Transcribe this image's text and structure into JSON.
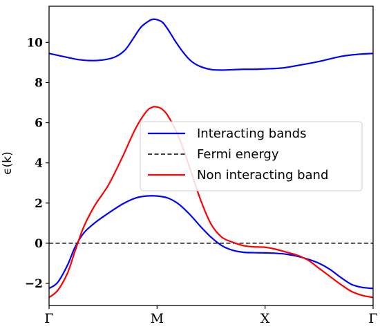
{
  "chart_data": {
    "type": "line",
    "title": "",
    "xlabel": "",
    "ylabel": "ϵ(k)",
    "xlim": [
      0,
      3
    ],
    "ylim": [
      -3.1,
      11.8
    ],
    "x_ticks": [
      {
        "value": 0,
        "label": "Γ"
      },
      {
        "value": 1,
        "label": "M"
      },
      {
        "value": 2,
        "label": "X"
      },
      {
        "value": 3,
        "label": "Γ"
      }
    ],
    "y_ticks": [
      {
        "value": -2,
        "label": "−2"
      },
      {
        "value": 0,
        "label": "0"
      },
      {
        "value": 2,
        "label": "2"
      },
      {
        "value": 4,
        "label": "4"
      },
      {
        "value": 6,
        "label": "6"
      },
      {
        "value": 8,
        "label": "8"
      },
      {
        "value": 10,
        "label": "10"
      }
    ],
    "grid": false,
    "legend_position": "center-right",
    "series": [
      {
        "name": "Interacting bands",
        "color": "#0000ff",
        "style": "solid",
        "x": [
          0,
          0.13,
          0.29,
          0.45,
          0.6,
          0.7,
          0.78,
          0.85,
          0.92,
          0.96,
          1.0,
          1.05,
          1.1,
          1.17,
          1.25,
          1.32,
          1.4,
          1.5,
          1.6,
          1.7,
          1.8,
          1.9,
          2.0,
          2.15,
          2.3,
          2.5,
          2.7,
          2.85,
          3.0
        ],
        "y": [
          9.45,
          9.3,
          9.13,
          9.1,
          9.25,
          9.6,
          10.2,
          10.75,
          11.05,
          11.15,
          11.13,
          11.0,
          10.65,
          10.05,
          9.45,
          9.05,
          8.8,
          8.65,
          8.62,
          8.64,
          8.66,
          8.66,
          8.68,
          8.72,
          8.85,
          9.05,
          9.3,
          9.4,
          9.45
        ]
      },
      {
        "name": "Interacting bands",
        "color": "#0000ff",
        "style": "solid",
        "x": [
          0,
          0.08,
          0.17,
          0.24,
          0.32,
          0.42,
          0.55,
          0.68,
          0.8,
          0.9,
          1.0,
          1.1,
          1.2,
          1.3,
          1.4,
          1.5,
          1.6,
          1.7,
          1.8,
          1.9,
          2.0,
          2.1,
          2.2,
          2.3,
          2.4,
          2.5,
          2.6,
          2.7,
          2.8,
          2.9,
          3.0
        ],
        "y": [
          -2.25,
          -1.95,
          -1.1,
          -0.2,
          0.5,
          1.0,
          1.5,
          1.95,
          2.25,
          2.35,
          2.35,
          2.25,
          1.95,
          1.45,
          0.85,
          0.3,
          -0.12,
          -0.35,
          -0.45,
          -0.47,
          -0.48,
          -0.5,
          -0.55,
          -0.65,
          -0.8,
          -1.0,
          -1.3,
          -1.7,
          -2.05,
          -2.2,
          -2.25
        ]
      },
      {
        "name": "Fermi energy",
        "color": "#000000",
        "style": "dashed",
        "x": [
          0,
          3
        ],
        "y": [
          0,
          0
        ]
      },
      {
        "name": "Non interacting band",
        "color": "#ff0000",
        "style": "solid",
        "x": [
          0,
          0.08,
          0.17,
          0.24,
          0.32,
          0.42,
          0.55,
          0.68,
          0.8,
          0.9,
          0.96,
          1.0,
          1.04,
          1.1,
          1.2,
          1.3,
          1.4,
          1.5,
          1.6,
          1.7,
          1.8,
          1.9,
          2.0,
          2.1,
          2.2,
          2.3,
          2.4,
          2.5,
          2.6,
          2.7,
          2.8,
          2.9,
          3.0
        ],
        "y": [
          -2.7,
          -2.35,
          -1.5,
          -0.4,
          0.8,
          1.85,
          2.9,
          4.3,
          5.7,
          6.55,
          6.78,
          6.78,
          6.7,
          6.35,
          5.3,
          3.8,
          2.2,
          0.95,
          0.3,
          0.05,
          -0.12,
          -0.18,
          -0.2,
          -0.3,
          -0.45,
          -0.6,
          -0.85,
          -1.25,
          -1.65,
          -2.05,
          -2.4,
          -2.6,
          -2.7
        ]
      }
    ],
    "legend_entries": [
      {
        "label": "Interacting bands",
        "color": "#0000ff",
        "style": "solid"
      },
      {
        "label": "Fermi energy",
        "color": "#000000",
        "style": "dashed"
      },
      {
        "label": "Non interacting band",
        "color": "#ff0000",
        "style": "solid"
      }
    ]
  }
}
